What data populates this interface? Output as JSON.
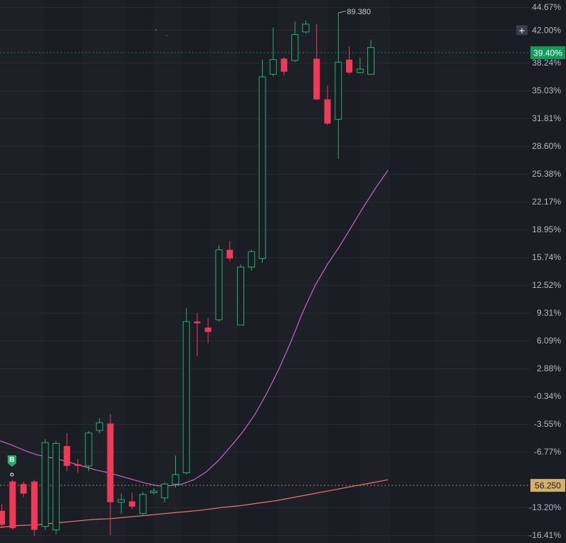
{
  "chart_data": {
    "type": "candlestick",
    "y_axis_ticks": [
      "44.67%",
      "42.00%",
      "38.24%",
      "35.03%",
      "31.81%",
      "28.60%",
      "25.38%",
      "22.17%",
      "18.95%",
      "15.74%",
      "12.52%",
      "9.31%",
      "6.09%",
      "2.88%",
      "-0.34%",
      "-3.55%",
      "-6.77%",
      "-13.20%",
      "-16.41%"
    ],
    "ylim": [
      -16.41,
      44.67
    ],
    "grid": true,
    "current_value_label": "39.40%",
    "current_value": 39.4,
    "reference_line_label": "56.250",
    "reference_line_value": -10.65,
    "high_annotation": "89.380",
    "buy_marker": "B",
    "plus_icon": "+",
    "candles": [
      {
        "o": -13.6,
        "c": -15.2,
        "h": -12.8,
        "l": -15.6
      },
      {
        "o": -10.2,
        "c": -15.6,
        "h": -10.0,
        "l": -15.8
      },
      {
        "o": -10.5,
        "c": -11.6,
        "h": -10.2,
        "l": -12.0
      },
      {
        "o": -10.2,
        "c": -15.8,
        "h": -10.0,
        "l": -16.5
      },
      {
        "o": -15.4,
        "c": -5.7,
        "h": -5.3,
        "l": -15.8
      },
      {
        "o": -15.8,
        "c": -5.8,
        "h": -5.5,
        "l": -16.3
      },
      {
        "o": -6.1,
        "c": -8.4,
        "h": -4.6,
        "l": -9.0
      },
      {
        "o": -8.2,
        "c": -8.4,
        "h": -7.6,
        "l": -9.2
      },
      {
        "o": -8.4,
        "c": -4.6,
        "h": -4.4,
        "l": -9.0
      },
      {
        "o": -4.3,
        "c": -3.4,
        "h": -2.9,
        "l": -4.6
      },
      {
        "o": -3.5,
        "c": -12.6,
        "h": -2.4,
        "l": -16.4
      },
      {
        "o": -12.6,
        "c": -12.3,
        "h": -11.6,
        "l": -13.9
      },
      {
        "o": -12.5,
        "c": -13.1,
        "h": -11.5,
        "l": -13.4
      },
      {
        "o": -13.9,
        "c": -11.7,
        "h": -11.4,
        "l": -14.1
      },
      {
        "o": -11.5,
        "c": -11.3,
        "h": -11.0,
        "l": -11.7
      },
      {
        "o": -12.1,
        "c": -10.5,
        "h": -10.3,
        "l": -12.6
      },
      {
        "o": -10.5,
        "c": -9.4,
        "h": -7.2,
        "l": -10.9
      },
      {
        "o": -9.2,
        "c": 8.3,
        "h": 9.9,
        "l": -9.4
      },
      {
        "o": 8.3,
        "c": 8.1,
        "h": 9.3,
        "l": 4.3
      },
      {
        "o": 7.6,
        "c": 7.1,
        "h": 8.7,
        "l": 5.8
      },
      {
        "o": 8.5,
        "c": 16.6,
        "h": 17.1,
        "l": 8.3
      },
      {
        "o": 16.6,
        "c": 15.6,
        "h": 17.6,
        "l": 15.3
      },
      {
        "o": 7.9,
        "c": 14.6,
        "h": 14.9,
        "l": 7.9
      },
      {
        "o": 14.6,
        "c": 16.4,
        "h": 16.6,
        "l": 14.2
      },
      {
        "o": 15.6,
        "c": 36.6,
        "h": 38.6,
        "l": 15.1
      },
      {
        "o": 36.9,
        "c": 38.6,
        "h": 42.3,
        "l": 36.7
      },
      {
        "o": 38.7,
        "c": 37.2,
        "h": 38.9,
        "l": 36.8
      },
      {
        "o": 38.5,
        "c": 41.5,
        "h": 43.0,
        "l": 38.3
      },
      {
        "o": 41.8,
        "c": 42.7,
        "h": 43.1,
        "l": 41.6
      },
      {
        "o": 38.7,
        "c": 34.0,
        "h": 42.7,
        "l": 33.9
      },
      {
        "o": 34.0,
        "c": 31.2,
        "h": 35.6,
        "l": 31.0
      },
      {
        "o": 31.7,
        "c": 38.3,
        "h": 44.0,
        "l": 27.1
      },
      {
        "o": 38.6,
        "c": 37.1,
        "h": 40.1,
        "l": 36.9
      },
      {
        "o": 37.1,
        "c": 37.5,
        "h": 38.8,
        "l": 37.0
      },
      {
        "o": 36.9,
        "c": 40.0,
        "h": 40.9,
        "l": 36.9
      }
    ],
    "series": [
      {
        "color": "#c766c9",
        "values": [
          -5.5,
          -6.0,
          -6.6,
          -7.1,
          -7.4,
          -7.7,
          -8.1,
          -8.5,
          -8.9,
          -9.2,
          -9.6,
          -10.0,
          -10.4,
          -10.7,
          -10.7,
          -10.5,
          -10.0,
          -9.1,
          -7.8,
          -6.2,
          -4.5,
          -2.5,
          0.0,
          2.8,
          6.0,
          9.5,
          12.5,
          14.9,
          17.0,
          19.3,
          21.6,
          23.8,
          25.8
        ]
      },
      {
        "color": "#f0716f",
        "values": [
          -15.5,
          -15.3,
          -15.2,
          -15.0,
          -14.8,
          -14.6,
          -14.5,
          -14.3,
          -14.1,
          -13.9,
          -13.7,
          -13.5,
          -13.2,
          -13.0,
          -12.7,
          -12.4,
          -12.0,
          -11.6,
          -11.2,
          -10.8,
          -10.4,
          -10.0
        ]
      }
    ]
  },
  "colors": {
    "up": "#21b26d",
    "down": "#ef3b58",
    "background": "#1b1d24",
    "grid": "#262932",
    "current_badge": "#0e9e59",
    "reference_badge": "#d4b06a",
    "axis_text": "#b4b8c2"
  }
}
